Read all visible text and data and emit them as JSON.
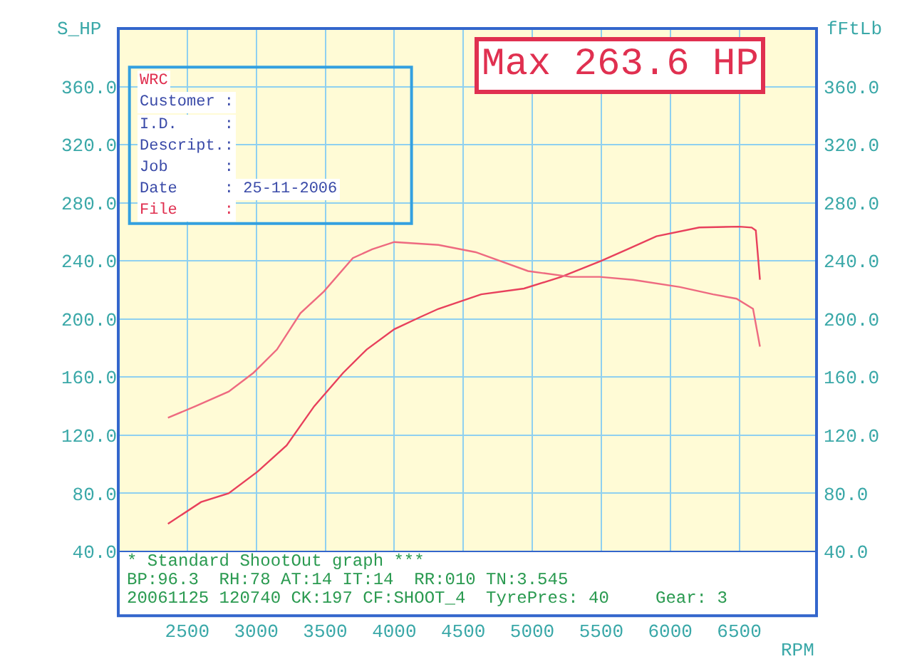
{
  "chart_data": {
    "type": "line",
    "xlabel": "RPM",
    "ylabel": "S_HP",
    "y2label": "fFtLb",
    "xlim": [
      2000,
      7060
    ],
    "xticks": [
      2500,
      3000,
      3500,
      4000,
      4500,
      5000,
      5500,
      6000,
      6500
    ],
    "ylim": [
      40,
      400
    ],
    "yticks": [
      {
        "value": 40,
        "label": "40.0"
      },
      {
        "value": 80,
        "label": "80.0"
      },
      {
        "value": 120,
        "label": "120.0"
      },
      {
        "value": 160,
        "label": "160.0"
      },
      {
        "value": 200,
        "label": "200.0"
      },
      {
        "value": 240,
        "label": "240.0"
      },
      {
        "value": 280,
        "label": "280.0"
      },
      {
        "value": 320,
        "label": "320.0"
      },
      {
        "value": 360,
        "label": "360.0"
      }
    ],
    "y2lim": [
      40,
      400
    ],
    "y2ticks": [
      {
        "value": 40,
        "label": "40.0"
      },
      {
        "value": 80,
        "label": "80.0"
      },
      {
        "value": 120,
        "label": "120.0"
      },
      {
        "value": 160,
        "label": "160.0"
      },
      {
        "value": 200,
        "label": "200.0"
      },
      {
        "value": 240,
        "label": "240.0"
      },
      {
        "value": 280,
        "label": "280.0"
      },
      {
        "value": 320,
        "label": "320.0"
      },
      {
        "value": 360,
        "label": "360.0"
      }
    ],
    "grid": true,
    "marker": "none",
    "line_style": "solid",
    "series": [
      {
        "color": "#e8405c",
        "x": [
          2360,
          2600,
          2800,
          3010,
          3220,
          3420,
          3630,
          3800,
          4000,
          4180,
          4320,
          4630,
          4940,
          5210,
          5500,
          5690,
          5900,
          6210,
          6500,
          6590,
          6620,
          6650
        ],
        "values": [
          59,
          74,
          80,
          95,
          113,
          140,
          163,
          179,
          193,
          201,
          207,
          217,
          221,
          229,
          240,
          248,
          257,
          263,
          263.6,
          263,
          261,
          227
        ]
      },
      {
        "color": "#ee6a80",
        "axis": "y2",
        "x": [
          2360,
          2560,
          2800,
          2980,
          3150,
          3320,
          3490,
          3700,
          3840,
          4000,
          4320,
          4590,
          4970,
          5280,
          5490,
          5730,
          6070,
          6310,
          6480,
          6600,
          6650
        ],
        "values": [
          132,
          140,
          150,
          163,
          179,
          204,
          219,
          242,
          248,
          253,
          251,
          246,
          233,
          229,
          229,
          227,
          222,
          217,
          214,
          207,
          181
        ]
      }
    ],
    "annotations": [
      "Max 263.6 HP",
      "WRC",
      "Customer :",
      "I.D.     :",
      "Descript.:",
      "Job      :",
      "Date     : 25-11-2006",
      "File     :",
      "* Standard ShootOut graph ***",
      "BP:96.3  RH:78 AT:14 IT:14  RR:010 TN:3.545",
      "20061125 120740 CK:197 CF:SHOOT_4  TyrePres: 40",
      "Gear: 3"
    ]
  }
}
